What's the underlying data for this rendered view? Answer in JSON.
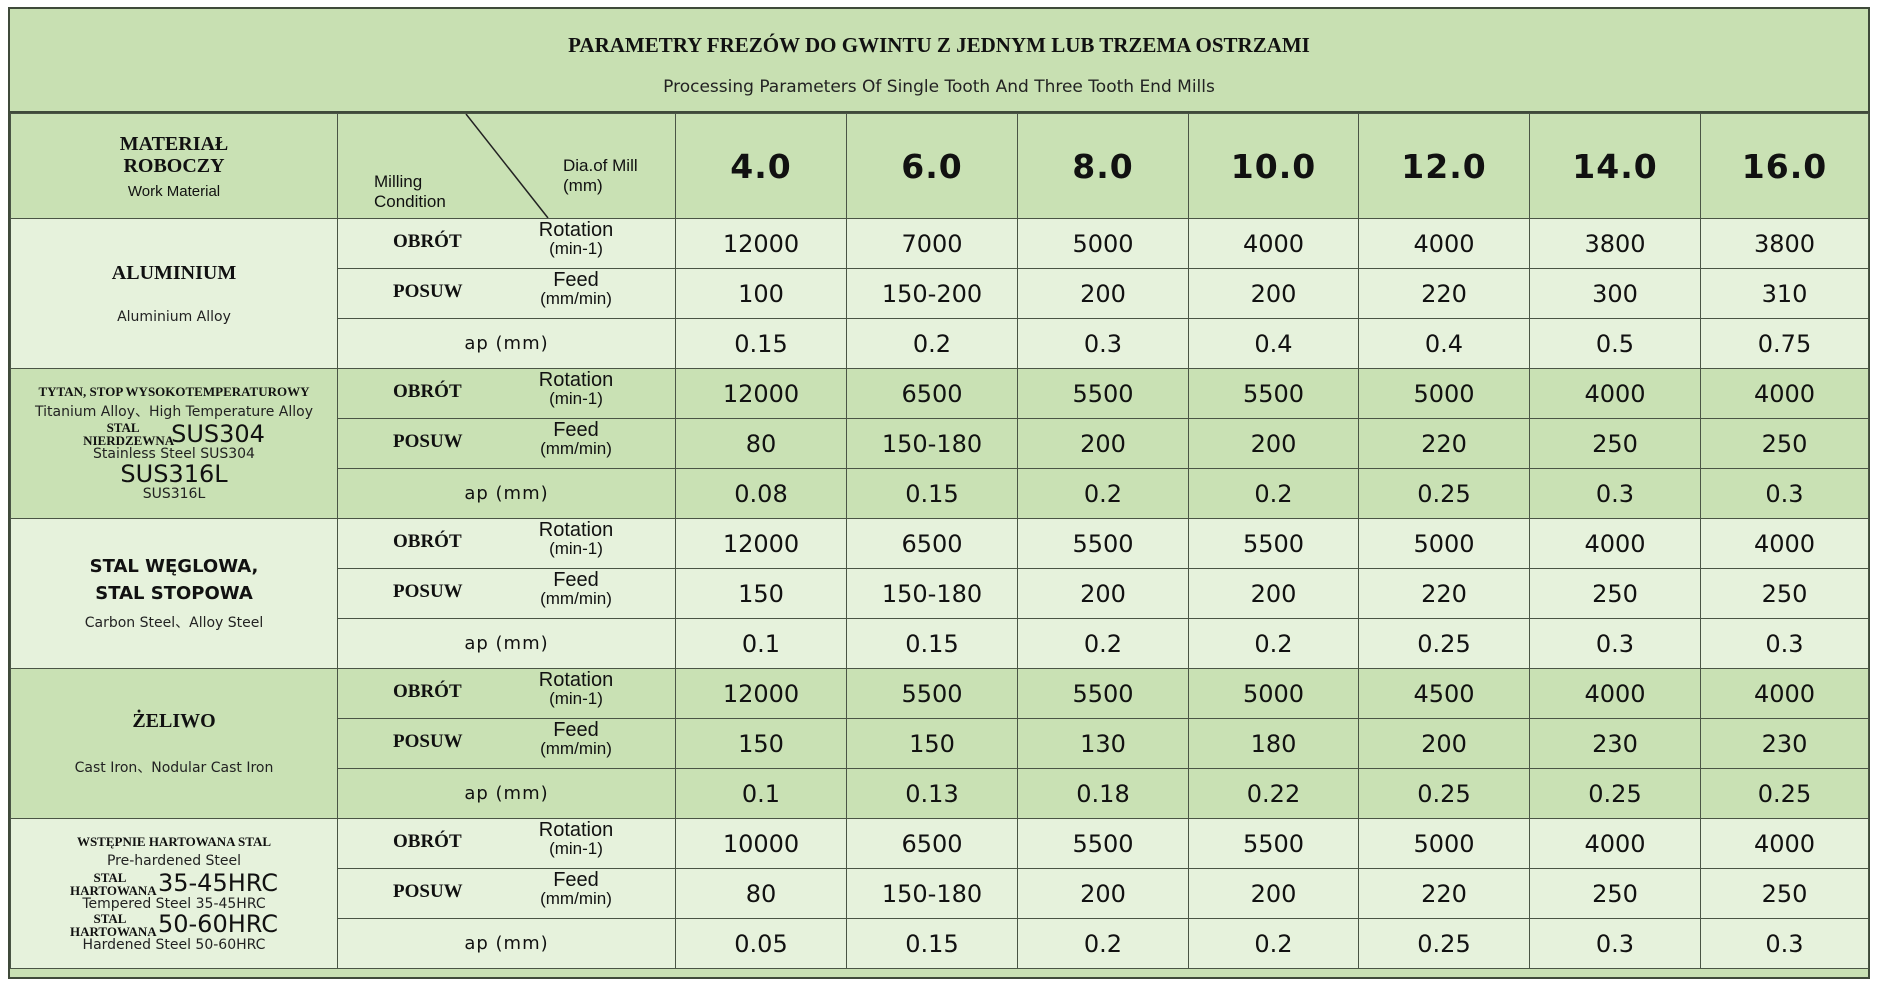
{
  "title": {
    "pl": "PARAMETRY FREZÓW DO GWINTU Z JEDNYM LUB TRZEMA OSTRZAMI",
    "en": "Processing Parameters Of Single Tooth And Three Tooth End Mills"
  },
  "header": {
    "material_pl": "MATERIAŁ ROBOCZY",
    "material_en": "Work Material",
    "milling_condition": "Milling Condition",
    "dia_of_mill": "Dia.of Mill (mm)",
    "diameters": [
      "4.0",
      "6.0",
      "8.0",
      "10.0",
      "12.0",
      "14.0",
      "16.0"
    ]
  },
  "conditions": {
    "rotation_pl": "OBRÓT",
    "rotation_en": "Rotation",
    "rotation_unit": "(min-1)",
    "feed_pl": "POSUW",
    "feed_en": "Feed",
    "feed_unit": "(mm/min)",
    "ap": "ap (mm)"
  },
  "materials": [
    {
      "name_pl": "ALUMINIUM",
      "name_en": "Aluminium Alloy",
      "rotation": [
        "12000",
        "7000",
        "5000",
        "4000",
        "4000",
        "3800",
        "3800"
      ],
      "feed": [
        "100",
        "150-200",
        "200",
        "200",
        "220",
        "300",
        "310"
      ],
      "ap": [
        "0.15",
        "0.2",
        "0.3",
        "0.4",
        "0.4",
        "0.5",
        "0.75"
      ]
    },
    {
      "line1_pl": "TYTAN, STOP WYSOKOTEMPERATUROWY",
      "line1_en": "Titanium Alloy、High Temperature Alloy",
      "line2_pl": "STAL NIERDZEWNA",
      "line2_code": "SUS304",
      "line2_en": "Stainless Steel SUS304",
      "line3_code": "SUS316L",
      "line3_en": "SUS316L",
      "rotation": [
        "12000",
        "6500",
        "5500",
        "5500",
        "5000",
        "4000",
        "4000"
      ],
      "feed": [
        "80",
        "150-180",
        "200",
        "200",
        "220",
        "250",
        "250"
      ],
      "ap": [
        "0.08",
        "0.15",
        "0.2",
        "0.2",
        "0.25",
        "0.3",
        "0.3"
      ]
    },
    {
      "name_pl_1": "STAL WĘGLOWA,",
      "name_pl_2": "STAL STOPOWA",
      "name_en": "Carbon Steel、Alloy Steel",
      "rotation": [
        "12000",
        "6500",
        "5500",
        "5500",
        "5000",
        "4000",
        "4000"
      ],
      "feed": [
        "150",
        "150-180",
        "200",
        "200",
        "220",
        "250",
        "250"
      ],
      "ap": [
        "0.1",
        "0.15",
        "0.2",
        "0.2",
        "0.25",
        "0.3",
        "0.3"
      ]
    },
    {
      "name_pl": "ŻELIWO",
      "name_en": "Cast Iron、Nodular Cast Iron",
      "rotation": [
        "12000",
        "5500",
        "5500",
        "5000",
        "4500",
        "4000",
        "4000"
      ],
      "feed": [
        "150",
        "150",
        "130",
        "180",
        "200",
        "230",
        "230"
      ],
      "ap": [
        "0.1",
        "0.13",
        "0.18",
        "0.22",
        "0.25",
        "0.25",
        "0.25"
      ]
    },
    {
      "line1_pl": "WSTĘPNIE HARTOWANA STAL",
      "line1_en": "Pre-hardened Steel",
      "line2_pl": "STAL HARTOWANA",
      "line2_code": "35-45HRC",
      "line2_en": "Tempered Steel 35-45HRC",
      "line3_pl": "STAL HARTOWANA",
      "line3_code": "50-60HRC",
      "line3_en": "Hardened Steel 50-60HRC",
      "rotation": [
        "10000",
        "6500",
        "5500",
        "5500",
        "5000",
        "4000",
        "4000"
      ],
      "feed": [
        "80",
        "150-180",
        "200",
        "200",
        "220",
        "250",
        "250"
      ],
      "ap": [
        "0.05",
        "0.15",
        "0.2",
        "0.2",
        "0.25",
        "0.3",
        "0.3"
      ]
    }
  ],
  "colors": {
    "header_green": "#c9e1b4",
    "light_green": "#e6f2dc",
    "border": "#4a5545"
  }
}
